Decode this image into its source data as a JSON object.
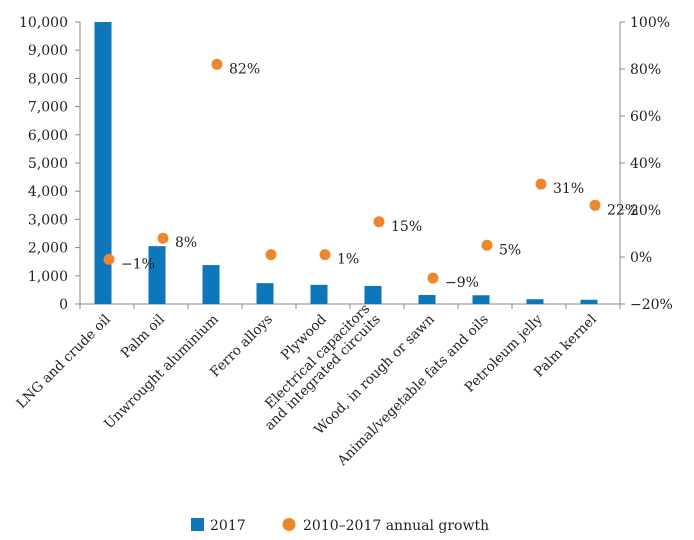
{
  "chart_data": {
    "type": "bar",
    "categories": [
      "LNG and crude oil",
      "Palm oil",
      "Unwrought aluminium",
      "Ferro alloys",
      "Plywood",
      "Electrical capacitors and integrated circuits",
      "Wood, in rough or sawn",
      "Animal/vegetable fats and oils",
      "Petroleum jelly",
      "Palm kernel"
    ],
    "category_lines": [
      [
        "LNG and crude oil"
      ],
      [
        "Palm oil"
      ],
      [
        "Unwrought aluminium"
      ],
      [
        "Ferro alloys"
      ],
      [
        "Plywood"
      ],
      [
        "Electrical capacitors",
        "and integrated circuits"
      ],
      [
        "Wood, in rough or sawn"
      ],
      [
        "Animal/vegetable fats and oils"
      ],
      [
        "Petroleum jelly"
      ],
      [
        "Palm kernel"
      ]
    ],
    "series": [
      {
        "name": "2017",
        "type": "bar",
        "axis": "left",
        "color": "#0e76bb",
        "values": [
          10000,
          2050,
          1380,
          740,
          680,
          640,
          320,
          310,
          170,
          150
        ]
      },
      {
        "name": "2010–2017 annual growth",
        "type": "scatter",
        "axis": "right",
        "color": "#f0862c",
        "values": [
          -1,
          8,
          82,
          1,
          1,
          15,
          -9,
          5,
          31,
          22
        ],
        "labels": [
          "−1%",
          "8%",
          "82%",
          "",
          "1%",
          "15%",
          "−9%",
          "5%",
          "31%",
          "22%"
        ]
      }
    ],
    "y_left": {
      "ylim": [
        0,
        10000
      ],
      "ticks": [
        0,
        1000,
        2000,
        3000,
        4000,
        5000,
        6000,
        7000,
        8000,
        9000,
        10000
      ],
      "tick_labels": [
        "0",
        "1,000",
        "2,000",
        "3,000",
        "4,000",
        "5,000",
        "6,000",
        "7,000",
        "8,000",
        "9,000",
        "10,000"
      ]
    },
    "y_right": {
      "ylim": [
        -20,
        100
      ],
      "ticks": [
        -20,
        0,
        20,
        40,
        60,
        80,
        100
      ],
      "tick_labels": [
        "−20%",
        "0%",
        "20%",
        "40%",
        "60%",
        "80%",
        "100%"
      ]
    },
    "grid": false,
    "legend_position": "bottom"
  }
}
